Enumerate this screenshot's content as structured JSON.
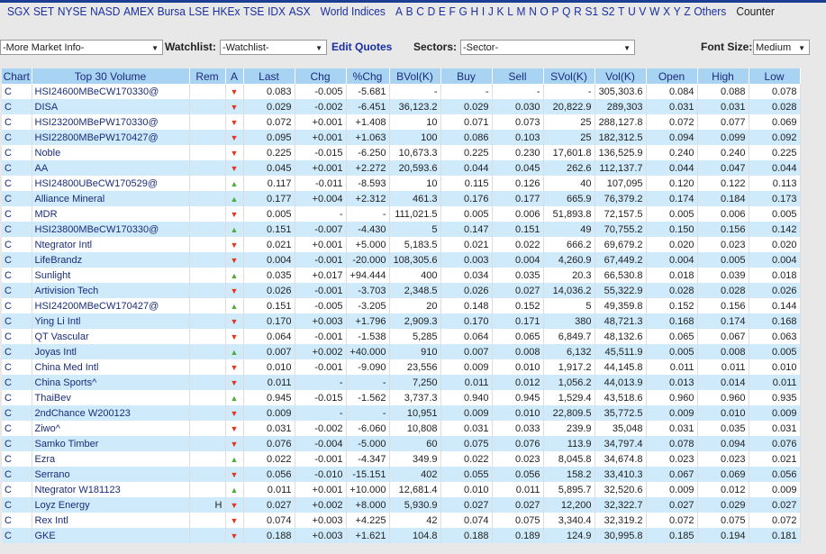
{
  "nav": {
    "exchanges": [
      "SGX",
      "SET",
      "NYSE",
      "NASD",
      "AMEX",
      "Bursa",
      "LSE",
      "HKEx",
      "TSE",
      "IDX",
      "ASX"
    ],
    "world": "World Indices",
    "letters": [
      "A",
      "B",
      "C",
      "D",
      "E",
      "F",
      "G",
      "H",
      "I",
      "J",
      "K",
      "L",
      "M",
      "N",
      "O",
      "P",
      "Q",
      "R",
      "S1",
      "S2",
      "T",
      "U",
      "V",
      "W",
      "X",
      "Y",
      "Z",
      "Others"
    ],
    "counter": "Counter"
  },
  "controls": {
    "market_info": "-More Market Info-",
    "watchlist_label": "Watchlist:",
    "watchlist": "-Watchlist-",
    "edit_quotes": "Edit Quotes",
    "sectors_label": "Sectors:",
    "sector": "-Sector-",
    "font_size_label": "Font Size:",
    "font_size": "Medium"
  },
  "colors": {
    "up": "#4caf3a",
    "down": "#e8341c",
    "header": "#a9d3f2",
    "row_alt": "#cfeafb"
  },
  "table": {
    "headers": [
      "Chart",
      "Top 30 Volume",
      "Rem",
      "A",
      "Last",
      "Chg",
      "%Chg",
      "BVol(K)",
      "Buy",
      "Sell",
      "SVol(K)",
      "Vol(K)",
      "Open",
      "High",
      "Low"
    ],
    "rows": [
      [
        "C",
        "HSI24600MBeCW170330@",
        "",
        "down",
        "0.083",
        "-0.005",
        "-5.681",
        "-",
        "-",
        "-",
        "-",
        "305,303.6",
        "0.084",
        "0.088",
        "0.078"
      ],
      [
        "C",
        "DISA",
        "",
        "down",
        "0.029",
        "-0.002",
        "-6.451",
        "36,123.2",
        "0.029",
        "0.030",
        "20,822.9",
        "289,303",
        "0.031",
        "0.031",
        "0.028"
      ],
      [
        "C",
        "HSI23200MBePW170330@",
        "",
        "down",
        "0.072",
        "+0.001",
        "+1.408",
        "10",
        "0.071",
        "0.073",
        "25",
        "288,127.8",
        "0.072",
        "0.077",
        "0.069"
      ],
      [
        "C",
        "HSI22800MBePW170427@",
        "",
        "down",
        "0.095",
        "+0.001",
        "+1.063",
        "100",
        "0.086",
        "0.103",
        "25",
        "182,312.5",
        "0.094",
        "0.099",
        "0.092"
      ],
      [
        "C",
        "Noble",
        "",
        "down",
        "0.225",
        "-0.015",
        "-6.250",
        "10,673.3",
        "0.225",
        "0.230",
        "17,601.8",
        "136,525.9",
        "0.240",
        "0.240",
        "0.225"
      ],
      [
        "C",
        "AA",
        "",
        "down",
        "0.045",
        "+0.001",
        "+2.272",
        "20,593.6",
        "0.044",
        "0.045",
        "262.6",
        "112,137.7",
        "0.044",
        "0.047",
        "0.044"
      ],
      [
        "C",
        "HSI24800UBeCW170529@",
        "",
        "up",
        "0.117",
        "-0.011",
        "-8.593",
        "10",
        "0.115",
        "0.126",
        "40",
        "107,095",
        "0.120",
        "0.122",
        "0.113"
      ],
      [
        "C",
        "Alliance Mineral",
        "",
        "up",
        "0.177",
        "+0.004",
        "+2.312",
        "461.3",
        "0.176",
        "0.177",
        "665.9",
        "76,379.2",
        "0.174",
        "0.184",
        "0.173"
      ],
      [
        "C",
        "MDR",
        "",
        "down",
        "0.005",
        "-",
        "-",
        "111,021.5",
        "0.005",
        "0.006",
        "51,893.8",
        "72,157.5",
        "0.005",
        "0.006",
        "0.005"
      ],
      [
        "C",
        "HSI23800MBeCW170330@",
        "",
        "up",
        "0.151",
        "-0.007",
        "-4.430",
        "5",
        "0.147",
        "0.151",
        "49",
        "70,755.2",
        "0.150",
        "0.156",
        "0.142"
      ],
      [
        "C",
        "Ntegrator Intl",
        "",
        "down",
        "0.021",
        "+0.001",
        "+5.000",
        "5,183.5",
        "0.021",
        "0.022",
        "666.2",
        "69,679.2",
        "0.020",
        "0.023",
        "0.020"
      ],
      [
        "C",
        "LifeBrandz",
        "",
        "down",
        "0.004",
        "-0.001",
        "-20.000",
        "108,305.6",
        "0.003",
        "0.004",
        "4,260.9",
        "67,449.2",
        "0.004",
        "0.005",
        "0.004"
      ],
      [
        "C",
        "Sunlight",
        "",
        "up",
        "0.035",
        "+0.017",
        "+94.444",
        "400",
        "0.034",
        "0.035",
        "20.3",
        "66,530.8",
        "0.018",
        "0.039",
        "0.018"
      ],
      [
        "C",
        "Artivision Tech",
        "",
        "down",
        "0.026",
        "-0.001",
        "-3.703",
        "2,348.5",
        "0.026",
        "0.027",
        "14,036.2",
        "55,322.9",
        "0.028",
        "0.028",
        "0.026"
      ],
      [
        "C",
        "HSI24200MBeCW170427@",
        "",
        "up",
        "0.151",
        "-0.005",
        "-3.205",
        "20",
        "0.148",
        "0.152",
        "5",
        "49,359.8",
        "0.152",
        "0.156",
        "0.144"
      ],
      [
        "C",
        "Ying Li Intl",
        "",
        "down",
        "0.170",
        "+0.003",
        "+1.796",
        "2,909.3",
        "0.170",
        "0.171",
        "380",
        "48,721.3",
        "0.168",
        "0.174",
        "0.168"
      ],
      [
        "C",
        "QT Vascular",
        "",
        "down",
        "0.064",
        "-0.001",
        "-1.538",
        "5,285",
        "0.064",
        "0.065",
        "6,849.7",
        "48,132.6",
        "0.065",
        "0.067",
        "0.063"
      ],
      [
        "C",
        "Joyas Intl",
        "",
        "up",
        "0.007",
        "+0.002",
        "+40.000",
        "910",
        "0.007",
        "0.008",
        "6,132",
        "45,511.9",
        "0.005",
        "0.008",
        "0.005"
      ],
      [
        "C",
        "China Med Intl",
        "",
        "down",
        "0.010",
        "-0.001",
        "-9.090",
        "23,556",
        "0.009",
        "0.010",
        "1,917.2",
        "44,145.8",
        "0.011",
        "0.011",
        "0.010"
      ],
      [
        "C",
        "China Sports^",
        "",
        "down",
        "0.011",
        "-",
        "-",
        "7,250",
        "0.011",
        "0.012",
        "1,056.2",
        "44,013.9",
        "0.013",
        "0.014",
        "0.011"
      ],
      [
        "C",
        "ThaiBev",
        "",
        "up",
        "0.945",
        "-0.015",
        "-1.562",
        "3,737.3",
        "0.940",
        "0.945",
        "1,529.4",
        "43,518.6",
        "0.960",
        "0.960",
        "0.935"
      ],
      [
        "C",
        "2ndChance W200123",
        "",
        "down",
        "0.009",
        "-",
        "-",
        "10,951",
        "0.009",
        "0.010",
        "22,809.5",
        "35,772.5",
        "0.009",
        "0.010",
        "0.009"
      ],
      [
        "C",
        "Ziwo^",
        "",
        "down",
        "0.031",
        "-0.002",
        "-6.060",
        "10,808",
        "0.031",
        "0.033",
        "239.9",
        "35,048",
        "0.031",
        "0.035",
        "0.031"
      ],
      [
        "C",
        "Samko Timber",
        "",
        "down",
        "0.076",
        "-0.004",
        "-5.000",
        "60",
        "0.075",
        "0.076",
        "113.9",
        "34,797.4",
        "0.078",
        "0.094",
        "0.076"
      ],
      [
        "C",
        "Ezra",
        "",
        "up",
        "0.022",
        "-0.001",
        "-4.347",
        "349.9",
        "0.022",
        "0.023",
        "8,045.8",
        "34,674.8",
        "0.023",
        "0.023",
        "0.021"
      ],
      [
        "C",
        "Serrano",
        "",
        "down",
        "0.056",
        "-0.010",
        "-15.151",
        "402",
        "0.055",
        "0.056",
        "158.2",
        "33,410.3",
        "0.067",
        "0.069",
        "0.056"
      ],
      [
        "C",
        "Ntegrator W181123",
        "",
        "up",
        "0.011",
        "+0.001",
        "+10.000",
        "12,681.4",
        "0.010",
        "0.011",
        "5,895.7",
        "32,520.6",
        "0.009",
        "0.012",
        "0.009"
      ],
      [
        "C",
        "Loyz Energy",
        "H",
        "down",
        "0.027",
        "+0.002",
        "+8.000",
        "5,930.9",
        "0.027",
        "0.027",
        "12,200",
        "32,322.7",
        "0.027",
        "0.029",
        "0.027"
      ],
      [
        "C",
        "Rex Intl",
        "",
        "down",
        "0.074",
        "+0.003",
        "+4.225",
        "42",
        "0.074",
        "0.075",
        "3,340.4",
        "32,319.2",
        "0.072",
        "0.075",
        "0.072"
      ],
      [
        "C",
        "GKE",
        "",
        "down",
        "0.188",
        "+0.003",
        "+1.621",
        "104.8",
        "0.188",
        "0.189",
        "124.9",
        "30,995.8",
        "0.185",
        "0.194",
        "0.181"
      ]
    ]
  }
}
